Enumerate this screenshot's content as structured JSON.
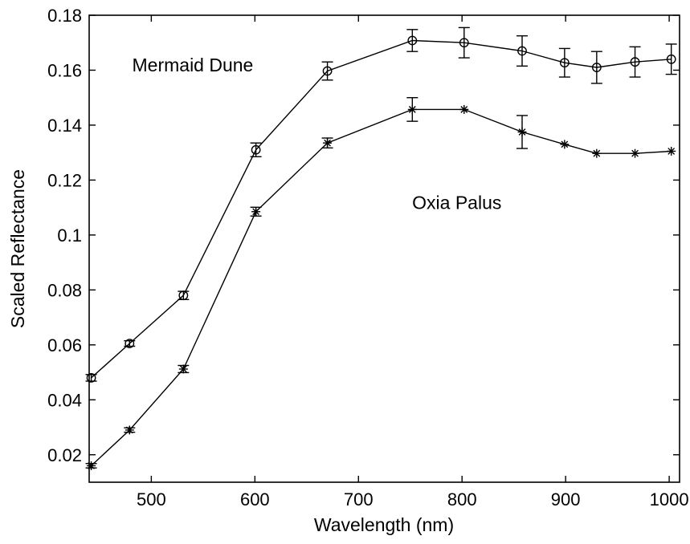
{
  "chart_data": {
    "type": "line",
    "title": "",
    "xlabel": "Wavelength (nm)",
    "ylabel": "Scaled Reflectance",
    "xlim": [
      440,
      1010
    ],
    "ylim": [
      0.01,
      0.18
    ],
    "xticks": [
      500,
      600,
      700,
      800,
      900,
      1000
    ],
    "yticks": [
      0.02,
      0.04,
      0.06,
      0.08,
      0.1,
      0.12,
      0.14,
      0.16,
      0.18
    ],
    "xtick_labels": [
      "500",
      "600",
      "700",
      "800",
      "900",
      "1000"
    ],
    "ytick_labels": [
      "0.02",
      "0.04",
      "0.06",
      "0.08",
      "0.1",
      "0.12",
      "0.14",
      "0.16",
      "0.18"
    ],
    "grid": false,
    "legend": "none",
    "series": [
      {
        "name": "Mermaid Dune",
        "marker": "circle",
        "x": [
          442,
          479,
          531,
          601,
          670,
          752,
          802,
          858,
          899,
          930,
          967,
          1002
        ],
        "y": [
          0.048,
          0.0605,
          0.078,
          0.131,
          0.1597,
          0.1708,
          0.17,
          0.167,
          0.1627,
          0.161,
          0.163,
          0.164
        ],
        "err": [
          0.0012,
          0.001,
          0.0015,
          0.0025,
          0.0033,
          0.004,
          0.0055,
          0.0055,
          0.0052,
          0.0058,
          0.0055,
          0.0055
        ]
      },
      {
        "name": "Oxia Palus",
        "marker": "asterisk",
        "x": [
          442,
          479,
          531,
          601,
          670,
          752,
          802,
          858,
          899,
          930,
          967,
          1002
        ],
        "y": [
          0.016,
          0.029,
          0.0512,
          0.1085,
          0.1335,
          0.1457,
          0.1457,
          0.1375,
          0.133,
          0.1297,
          0.1297,
          0.1305
        ],
        "err": [
          0.0008,
          0.0008,
          0.0013,
          0.0016,
          0.0018,
          0.0043,
          0,
          0.006,
          0,
          0,
          0,
          0
        ]
      }
    ],
    "annotations": [
      {
        "text": "Mermaid Dune",
        "x": 540,
        "y": 0.1595
      },
      {
        "text": "Oxia Palus",
        "x": 795,
        "y": 0.1095
      }
    ],
    "colors": {
      "line": "#000000",
      "background": "#ffffff"
    }
  }
}
